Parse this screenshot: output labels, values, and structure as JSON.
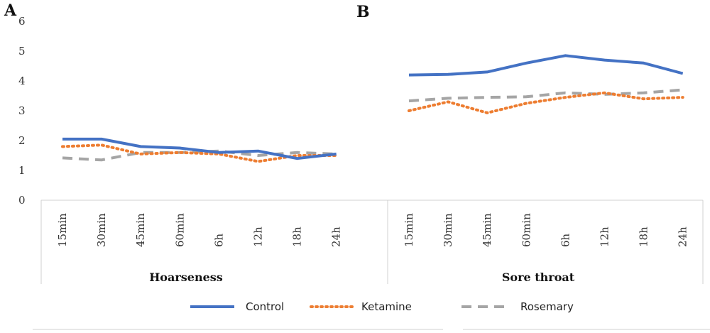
{
  "chart_data": {
    "type": "line",
    "panels": [
      "A",
      "B"
    ],
    "groups": [
      "Hoarseness",
      "Sore throat"
    ],
    "categories": [
      "15min",
      "30min",
      "45min",
      "60min",
      "6h",
      "12h",
      "18h",
      "24h"
    ],
    "ylim": [
      0,
      6
    ],
    "yticks": [
      "0",
      "1",
      "2",
      "3",
      "4",
      "5",
      "6"
    ],
    "grid": false,
    "legend_position": "bottom",
    "series": [
      {
        "name": "Control",
        "color": "#4472C4",
        "style": "solid",
        "values": {
          "Hoarseness": [
            2.05,
            2.05,
            1.8,
            1.75,
            1.6,
            1.65,
            1.4,
            1.55
          ],
          "Sore throat": [
            4.2,
            4.22,
            4.3,
            4.6,
            4.85,
            4.7,
            4.6,
            4.25
          ]
        }
      },
      {
        "name": "Ketamine",
        "color": "#ED7D31",
        "style": "dotted",
        "values": {
          "Hoarseness": [
            1.8,
            1.85,
            1.55,
            1.6,
            1.55,
            1.3,
            1.5,
            1.5
          ],
          "Sore throat": [
            3.0,
            3.3,
            2.93,
            3.25,
            3.45,
            3.6,
            3.4,
            3.45
          ]
        }
      },
      {
        "name": "Rosemary",
        "color": "#A5A5A5",
        "style": "dashed",
        "values": {
          "Hoarseness": [
            1.42,
            1.35,
            1.6,
            1.6,
            1.65,
            1.5,
            1.6,
            1.55
          ],
          "Sore throat": [
            3.33,
            3.42,
            3.45,
            3.47,
            3.6,
            3.55,
            3.6,
            3.7
          ]
        }
      }
    ]
  }
}
